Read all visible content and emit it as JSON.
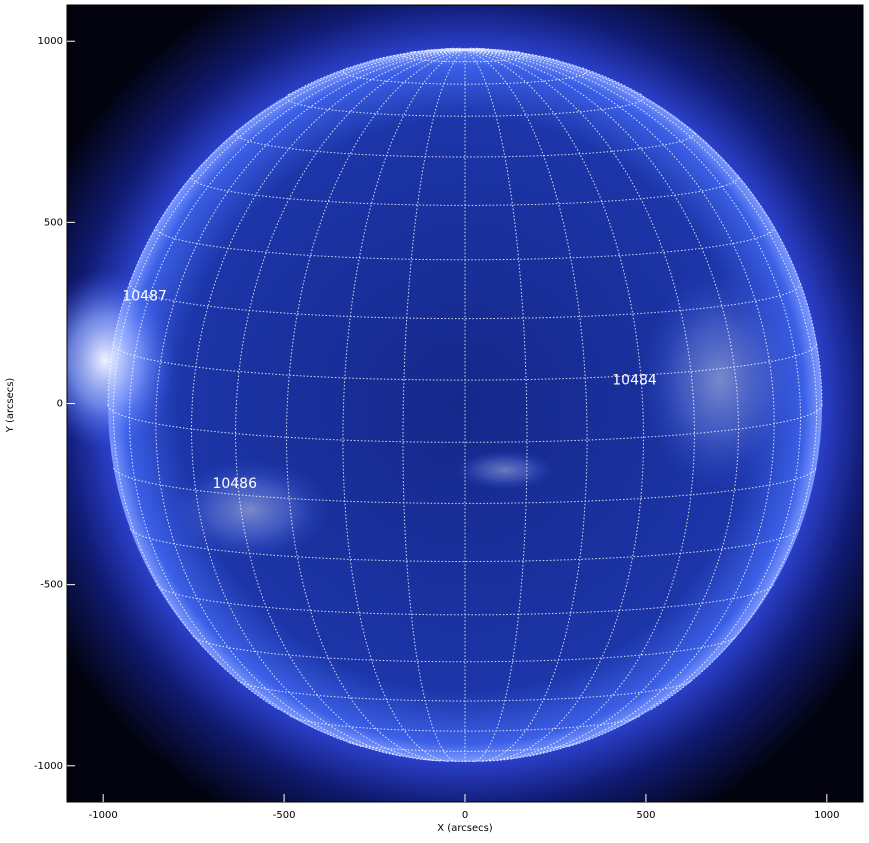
{
  "chart_data": {
    "type": "image",
    "xlabel": "X (arcsecs)",
    "ylabel": "Y (arcsecs)",
    "xlim": [
      -1100,
      1100
    ],
    "ylim": [
      -1100,
      1100
    ],
    "xticks": [
      -1000,
      -500,
      0,
      500,
      1000
    ],
    "yticks": [
      -1000,
      -500,
      0,
      500,
      1000
    ],
    "grid": true,
    "annotations": [
      {
        "label": "10487",
        "x": -947,
        "y": 296
      },
      {
        "label": "10484",
        "x": 407,
        "y": 64
      },
      {
        "label": "10486",
        "x": -698,
        "y": -222
      }
    ]
  }
}
